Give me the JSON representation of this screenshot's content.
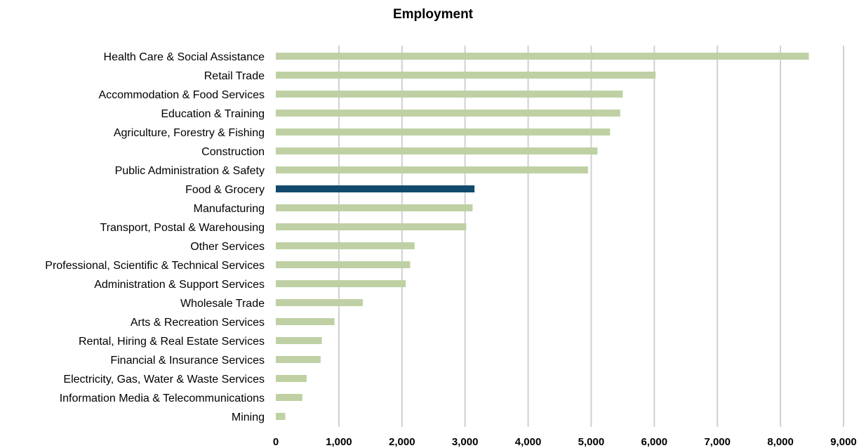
{
  "chart_data": {
    "type": "bar",
    "orientation": "horizontal",
    "title": "Employment",
    "xlabel": "",
    "ylabel": "",
    "xlim": [
      0,
      9000
    ],
    "grid": "vertical",
    "legend": "none",
    "tick_values": [
      0,
      1000,
      2000,
      3000,
      4000,
      5000,
      6000,
      7000,
      8000,
      9000
    ],
    "tick_labels": [
      "0",
      "1,000",
      "2,000",
      "3,000",
      "4,000",
      "5,000",
      "6,000",
      "7,000",
      "8,000",
      "9,000"
    ],
    "categories": [
      "Health Care & Social Assistance",
      "Retail Trade",
      "Accommodation & Food Services",
      "Education & Training",
      "Agriculture, Forestry & Fishing",
      "Construction",
      "Public Administration & Safety",
      "Food & Grocery",
      "Manufacturing",
      "Transport, Postal & Warehousing",
      "Other Services",
      "Professional, Scientific & Technical Services",
      "Administration & Support Services",
      "Wholesale Trade",
      "Arts & Recreation Services",
      "Rental, Hiring & Real Estate Services",
      "Financial & Insurance Services",
      "Electricity, Gas, Water & Waste Services",
      "Information Media & Telecommunications",
      "Mining"
    ],
    "values": [
      8450,
      6020,
      5500,
      5460,
      5300,
      5100,
      4950,
      3150,
      3120,
      3020,
      2200,
      2130,
      2060,
      1380,
      930,
      730,
      710,
      490,
      420,
      150
    ],
    "highlight_category": "Food & Grocery",
    "colors": {
      "bar": "#bfd1a4",
      "highlight": "#124a6e",
      "grid": "#d0d0d0"
    }
  }
}
